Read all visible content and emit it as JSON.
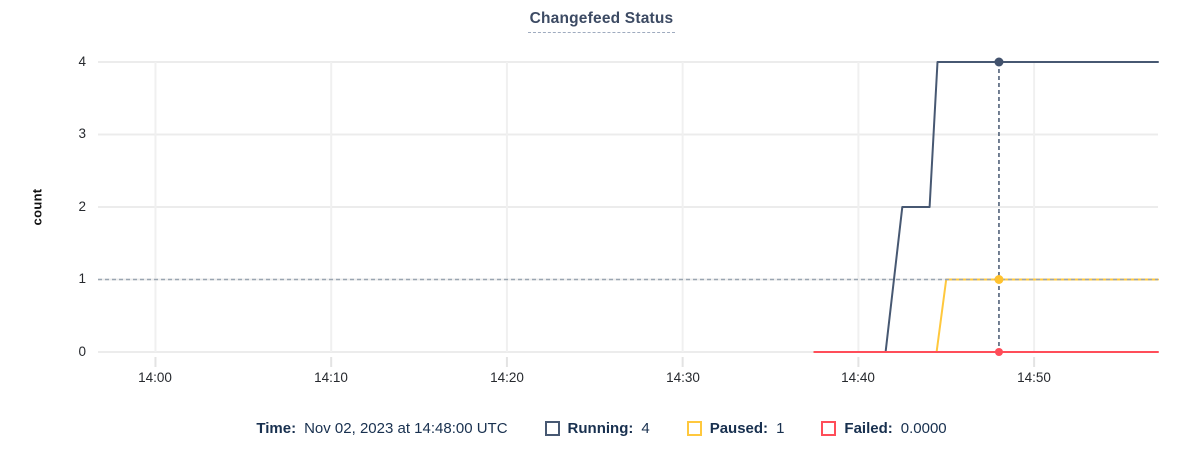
{
  "title": "Changefeed Status",
  "legend": {
    "time_label": "Time:",
    "time_value": "Nov 02, 2023 at 14:48:00 UTC",
    "items": [
      {
        "label": "Running:",
        "value": "4",
        "color": "#475872"
      },
      {
        "label": "Paused:",
        "value": "1",
        "color": "#ffc83d"
      },
      {
        "label": "Failed:",
        "value": "0.0000",
        "color": "#ff4d59"
      }
    ]
  },
  "chart_data": {
    "type": "line",
    "title": "Changefeed Status",
    "xlabel": "",
    "ylabel": "count",
    "ylim": [
      0,
      4
    ],
    "grid": true,
    "legend_position": "bottom",
    "y_grid_values": [
      0,
      1,
      2,
      3,
      4
    ],
    "y_tick_labels": [
      "4",
      "3",
      "2",
      "1",
      "0"
    ],
    "x_unit": "minutes after 14:00, Nov 02 2023 UTC",
    "x_domain": [
      -3.27,
      57.05
    ],
    "x_tick_minutes": [
      0,
      10,
      20,
      30,
      40,
      50
    ],
    "x_tick_labels": [
      "14:00",
      "14:10",
      "14:20",
      "14:30",
      "14:40",
      "14:50"
    ],
    "series": [
      {
        "name": "Running",
        "color": "#475872",
        "points": [
          [
            37.5,
            0
          ],
          [
            41.55,
            0
          ],
          [
            42.5,
            2
          ],
          [
            44.05,
            2
          ],
          [
            44.5,
            4
          ],
          [
            57.05,
            4
          ]
        ]
      },
      {
        "name": "Paused",
        "color": "#ffc83d",
        "points": [
          [
            37.5,
            0
          ],
          [
            44.45,
            0
          ],
          [
            45.0,
            1
          ],
          [
            57.05,
            1
          ]
        ]
      },
      {
        "name": "Failed",
        "color": "#ff4d59",
        "points": [
          [
            37.5,
            0
          ],
          [
            57.05,
            0
          ]
        ]
      }
    ],
    "hover": {
      "x": 48,
      "time": "Nov 02, 2023 at 14:48:00 UTC",
      "y_line": 1,
      "crosshair_v_color": "#45566f",
      "crosshair_h_color": "#9aa5b1",
      "grid_color": "#ececec",
      "points": [
        {
          "series": "Running",
          "y": 4,
          "color": "#42526d",
          "r": 4.5
        },
        {
          "series": "Paused",
          "y": 1,
          "color": "#ffc22e",
          "r": 4.5
        },
        {
          "series": "Failed",
          "y": 0,
          "color": "#ff4d59",
          "r": 4
        }
      ],
      "values": {
        "Running": "4",
        "Paused": "1",
        "Failed": "0.0000"
      }
    }
  }
}
